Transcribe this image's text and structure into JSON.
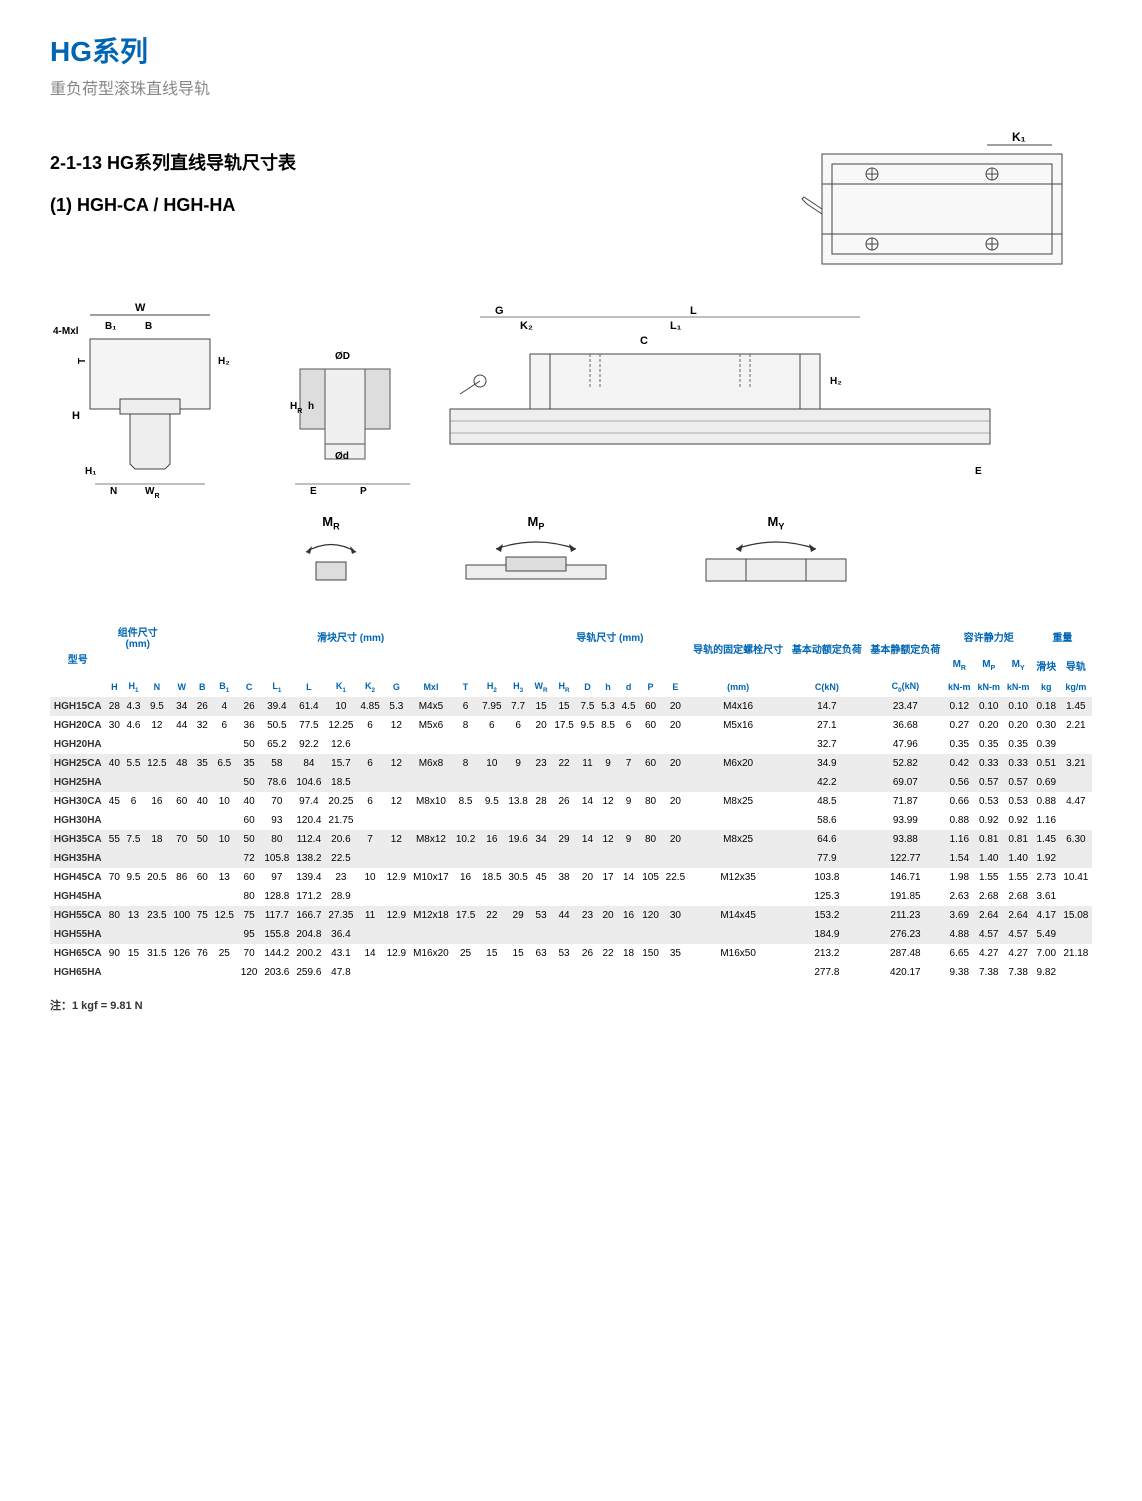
{
  "header": {
    "main_title": "HG系列",
    "subtitle": "重负荷型滚珠直线导轨"
  },
  "section": {
    "dimensions_heading": "2-1-13 HG系列直线导轨尺寸表",
    "model_heading": "(1) HGH-CA / HGH-HA"
  },
  "diagram_labels": {
    "top_right": {
      "K1": "K₁"
    },
    "cross_section_left": {
      "W": "W",
      "B1": "B₁",
      "B": "B",
      "4Mxl": "4-Mxl",
      "T": "T",
      "H2": "H₂",
      "H": "H",
      "H1": "H₁",
      "N": "N",
      "WR": "W_R"
    },
    "rail_section": {
      "phiD": "ØD",
      "phid": "Ød",
      "h": "h",
      "HR": "H_R",
      "E": "E",
      "P": "P"
    },
    "side_view": {
      "G": "G",
      "K2": "K₂",
      "L": "L",
      "L1": "L₁",
      "C": "C",
      "H2": "H₂",
      "E": "E"
    }
  },
  "moments": {
    "MR": "M_R",
    "MP": "M_P",
    "MY": "M_Y"
  },
  "table": {
    "group_headers": {
      "model": "型号",
      "assembly": "组件尺寸",
      "assembly_unit": "(mm)",
      "block": "滑块尺寸 (mm)",
      "rail": "导轨尺寸 (mm)",
      "bolt": "导轨的固定螺栓尺寸",
      "c_dyn": "基本动额定负荷",
      "c_stat": "基本静额定负荷",
      "moment": "容许静力矩",
      "weight": "重量"
    },
    "sub_headers": {
      "MR": "M_R",
      "MP": "M_P",
      "MY": "M_Y",
      "block_wt": "滑块",
      "rail_wt": "导轨"
    },
    "col_headers": [
      "H",
      "H₁",
      "N",
      "W",
      "B",
      "B₁",
      "C",
      "L₁",
      "L",
      "K₁",
      "K₂",
      "G",
      "Mxl",
      "T",
      "H₂",
      "H₃",
      "W_R",
      "H_R",
      "D",
      "h",
      "d",
      "P",
      "E",
      "(mm)",
      "C(kN)",
      "C₀(kN)",
      "kN-m",
      "kN-m",
      "kN-m",
      "kg",
      "kg/m"
    ],
    "rows": [
      {
        "model": "HGH15CA",
        "H": "28",
        "H1": "4.3",
        "N": "9.5",
        "W": "34",
        "B": "26",
        "B1": "4",
        "C": "26",
        "L1": "39.4",
        "L": "61.4",
        "K1": "10",
        "K2": "4.85",
        "G": "5.3",
        "Mxl": "M4x5",
        "T": "6",
        "H2": "7.95",
        "H3": "7.7",
        "WR": "15",
        "HR": "15",
        "D": "7.5",
        "h": "5.3",
        "d": "4.5",
        "P": "60",
        "E": "20",
        "bolt": "M4x16",
        "Cdyn": "14.7",
        "Cstat": "23.47",
        "MR": "0.12",
        "MP": "0.10",
        "MY": "0.10",
        "wblk": "0.18",
        "wrl": "1.45"
      },
      {
        "model": "HGH20CA",
        "H": "30",
        "H1": "4.6",
        "N": "12",
        "W": "44",
        "B": "32",
        "B1": "6",
        "C": "36",
        "L1": "50.5",
        "L": "77.5",
        "K1": "12.25",
        "K2": "6",
        "G": "12",
        "Mxl": "M5x6",
        "T": "8",
        "H2": "6",
        "H3": "6",
        "WR": "20",
        "HR": "17.5",
        "D": "9.5",
        "h": "8.5",
        "d": "6",
        "P": "60",
        "E": "20",
        "bolt": "M5x16",
        "Cdyn": "27.1",
        "Cstat": "36.68",
        "MR": "0.27",
        "MP": "0.20",
        "MY": "0.20",
        "wblk": "0.30",
        "wrl": "2.21"
      },
      {
        "model": "HGH20HA",
        "H": "",
        "H1": "",
        "N": "",
        "W": "",
        "B": "",
        "B1": "",
        "C": "50",
        "L1": "65.2",
        "L": "92.2",
        "K1": "12.6",
        "K2": "",
        "G": "",
        "Mxl": "",
        "T": "",
        "H2": "",
        "H3": "",
        "WR": "",
        "HR": "",
        "D": "",
        "h": "",
        "d": "",
        "P": "",
        "E": "",
        "bolt": "",
        "Cdyn": "32.7",
        "Cstat": "47.96",
        "MR": "0.35",
        "MP": "0.35",
        "MY": "0.35",
        "wblk": "0.39",
        "wrl": ""
      },
      {
        "model": "HGH25CA",
        "H": "40",
        "H1": "5.5",
        "N": "12.5",
        "W": "48",
        "B": "35",
        "B1": "6.5",
        "C": "35",
        "L1": "58",
        "L": "84",
        "K1": "15.7",
        "K2": "6",
        "G": "12",
        "Mxl": "M6x8",
        "T": "8",
        "H2": "10",
        "H3": "9",
        "WR": "23",
        "HR": "22",
        "D": "11",
        "h": "9",
        "d": "7",
        "P": "60",
        "E": "20",
        "bolt": "M6x20",
        "Cdyn": "34.9",
        "Cstat": "52.82",
        "MR": "0.42",
        "MP": "0.33",
        "MY": "0.33",
        "wblk": "0.51",
        "wrl": "3.21"
      },
      {
        "model": "HGH25HA",
        "H": "",
        "H1": "",
        "N": "",
        "W": "",
        "B": "",
        "B1": "",
        "C": "50",
        "L1": "78.6",
        "L": "104.6",
        "K1": "18.5",
        "K2": "",
        "G": "",
        "Mxl": "",
        "T": "",
        "H2": "",
        "H3": "",
        "WR": "",
        "HR": "",
        "D": "",
        "h": "",
        "d": "",
        "P": "",
        "E": "",
        "bolt": "",
        "Cdyn": "42.2",
        "Cstat": "69.07",
        "MR": "0.56",
        "MP": "0.57",
        "MY": "0.57",
        "wblk": "0.69",
        "wrl": ""
      },
      {
        "model": "HGH30CA",
        "H": "45",
        "H1": "6",
        "N": "16",
        "W": "60",
        "B": "40",
        "B1": "10",
        "C": "40",
        "L1": "70",
        "L": "97.4",
        "K1": "20.25",
        "K2": "6",
        "G": "12",
        "Mxl": "M8x10",
        "T": "8.5",
        "H2": "9.5",
        "H3": "13.8",
        "WR": "28",
        "HR": "26",
        "D": "14",
        "h": "12",
        "d": "9",
        "P": "80",
        "E": "20",
        "bolt": "M8x25",
        "Cdyn": "48.5",
        "Cstat": "71.87",
        "MR": "0.66",
        "MP": "0.53",
        "MY": "0.53",
        "wblk": "0.88",
        "wrl": "4.47"
      },
      {
        "model": "HGH30HA",
        "H": "",
        "H1": "",
        "N": "",
        "W": "",
        "B": "",
        "B1": "",
        "C": "60",
        "L1": "93",
        "L": "120.4",
        "K1": "21.75",
        "K2": "",
        "G": "",
        "Mxl": "",
        "T": "",
        "H2": "",
        "H3": "",
        "WR": "",
        "HR": "",
        "D": "",
        "h": "",
        "d": "",
        "P": "",
        "E": "",
        "bolt": "",
        "Cdyn": "58.6",
        "Cstat": "93.99",
        "MR": "0.88",
        "MP": "0.92",
        "MY": "0.92",
        "wblk": "1.16",
        "wrl": ""
      },
      {
        "model": "HGH35CA",
        "H": "55",
        "H1": "7.5",
        "N": "18",
        "W": "70",
        "B": "50",
        "B1": "10",
        "C": "50",
        "L1": "80",
        "L": "112.4",
        "K1": "20.6",
        "K2": "7",
        "G": "12",
        "Mxl": "M8x12",
        "T": "10.2",
        "H2": "16",
        "H3": "19.6",
        "WR": "34",
        "HR": "29",
        "D": "14",
        "h": "12",
        "d": "9",
        "P": "80",
        "E": "20",
        "bolt": "M8x25",
        "Cdyn": "64.6",
        "Cstat": "93.88",
        "MR": "1.16",
        "MP": "0.81",
        "MY": "0.81",
        "wblk": "1.45",
        "wrl": "6.30"
      },
      {
        "model": "HGH35HA",
        "H": "",
        "H1": "",
        "N": "",
        "W": "",
        "B": "",
        "B1": "",
        "C": "72",
        "L1": "105.8",
        "L": "138.2",
        "K1": "22.5",
        "K2": "",
        "G": "",
        "Mxl": "",
        "T": "",
        "H2": "",
        "H3": "",
        "WR": "",
        "HR": "",
        "D": "",
        "h": "",
        "d": "",
        "P": "",
        "E": "",
        "bolt": "",
        "Cdyn": "77.9",
        "Cstat": "122.77",
        "MR": "1.54",
        "MP": "1.40",
        "MY": "1.40",
        "wblk": "1.92",
        "wrl": ""
      },
      {
        "model": "HGH45CA",
        "H": "70",
        "H1": "9.5",
        "N": "20.5",
        "W": "86",
        "B": "60",
        "B1": "13",
        "C": "60",
        "L1": "97",
        "L": "139.4",
        "K1": "23",
        "K2": "10",
        "G": "12.9",
        "Mxl": "M10x17",
        "T": "16",
        "H2": "18.5",
        "H3": "30.5",
        "WR": "45",
        "HR": "38",
        "D": "20",
        "h": "17",
        "d": "14",
        "P": "105",
        "E": "22.5",
        "bolt": "M12x35",
        "Cdyn": "103.8",
        "Cstat": "146.71",
        "MR": "1.98",
        "MP": "1.55",
        "MY": "1.55",
        "wblk": "2.73",
        "wrl": "10.41"
      },
      {
        "model": "HGH45HA",
        "H": "",
        "H1": "",
        "N": "",
        "W": "",
        "B": "",
        "B1": "",
        "C": "80",
        "L1": "128.8",
        "L": "171.2",
        "K1": "28.9",
        "K2": "",
        "G": "",
        "Mxl": "",
        "T": "",
        "H2": "",
        "H3": "",
        "WR": "",
        "HR": "",
        "D": "",
        "h": "",
        "d": "",
        "P": "",
        "E": "",
        "bolt": "",
        "Cdyn": "125.3",
        "Cstat": "191.85",
        "MR": "2.63",
        "MP": "2.68",
        "MY": "2.68",
        "wblk": "3.61",
        "wrl": ""
      },
      {
        "model": "HGH55CA",
        "H": "80",
        "H1": "13",
        "N": "23.5",
        "W": "100",
        "B": "75",
        "B1": "12.5",
        "C": "75",
        "L1": "117.7",
        "L": "166.7",
        "K1": "27.35",
        "K2": "11",
        "G": "12.9",
        "Mxl": "M12x18",
        "T": "17.5",
        "H2": "22",
        "H3": "29",
        "WR": "53",
        "HR": "44",
        "D": "23",
        "h": "20",
        "d": "16",
        "P": "120",
        "E": "30",
        "bolt": "M14x45",
        "Cdyn": "153.2",
        "Cstat": "211.23",
        "MR": "3.69",
        "MP": "2.64",
        "MY": "2.64",
        "wblk": "4.17",
        "wrl": "15.08"
      },
      {
        "model": "HGH55HA",
        "H": "",
        "H1": "",
        "N": "",
        "W": "",
        "B": "",
        "B1": "",
        "C": "95",
        "L1": "155.8",
        "L": "204.8",
        "K1": "36.4",
        "K2": "",
        "G": "",
        "Mxl": "",
        "T": "",
        "H2": "",
        "H3": "",
        "WR": "",
        "HR": "",
        "D": "",
        "h": "",
        "d": "",
        "P": "",
        "E": "",
        "bolt": "",
        "Cdyn": "184.9",
        "Cstat": "276.23",
        "MR": "4.88",
        "MP": "4.57",
        "MY": "4.57",
        "wblk": "5.49",
        "wrl": ""
      },
      {
        "model": "HGH65CA",
        "H": "90",
        "H1": "15",
        "N": "31.5",
        "W": "126",
        "B": "76",
        "B1": "25",
        "C": "70",
        "L1": "144.2",
        "L": "200.2",
        "K1": "43.1",
        "K2": "14",
        "G": "12.9",
        "Mxl": "M16x20",
        "T": "25",
        "H2": "15",
        "H3": "15",
        "WR": "63",
        "HR": "53",
        "D": "26",
        "h": "22",
        "d": "18",
        "P": "150",
        "E": "35",
        "bolt": "M16x50",
        "Cdyn": "213.2",
        "Cstat": "287.48",
        "MR": "6.65",
        "MP": "4.27",
        "MY": "4.27",
        "wblk": "7.00",
        "wrl": "21.18"
      },
      {
        "model": "HGH65HA",
        "H": "",
        "H1": "",
        "N": "",
        "W": "",
        "B": "",
        "B1": "",
        "C": "120",
        "L1": "203.6",
        "L": "259.6",
        "K1": "47.8",
        "K2": "",
        "G": "",
        "Mxl": "",
        "T": "",
        "H2": "",
        "H3": "",
        "WR": "",
        "HR": "",
        "D": "",
        "h": "",
        "d": "",
        "P": "",
        "E": "",
        "bolt": "",
        "Cdyn": "277.8",
        "Cstat": "420.17",
        "MR": "9.38",
        "MP": "7.38",
        "MY": "7.38",
        "wblk": "9.82",
        "wrl": ""
      }
    ]
  },
  "footnote": "注：1 kgf = 9.81 N",
  "colors": {
    "title_blue": "#0066b3",
    "subtitle_grey": "#888888",
    "row_alt": "#ececec",
    "row_base": "#ffffff",
    "text": "#333333"
  }
}
